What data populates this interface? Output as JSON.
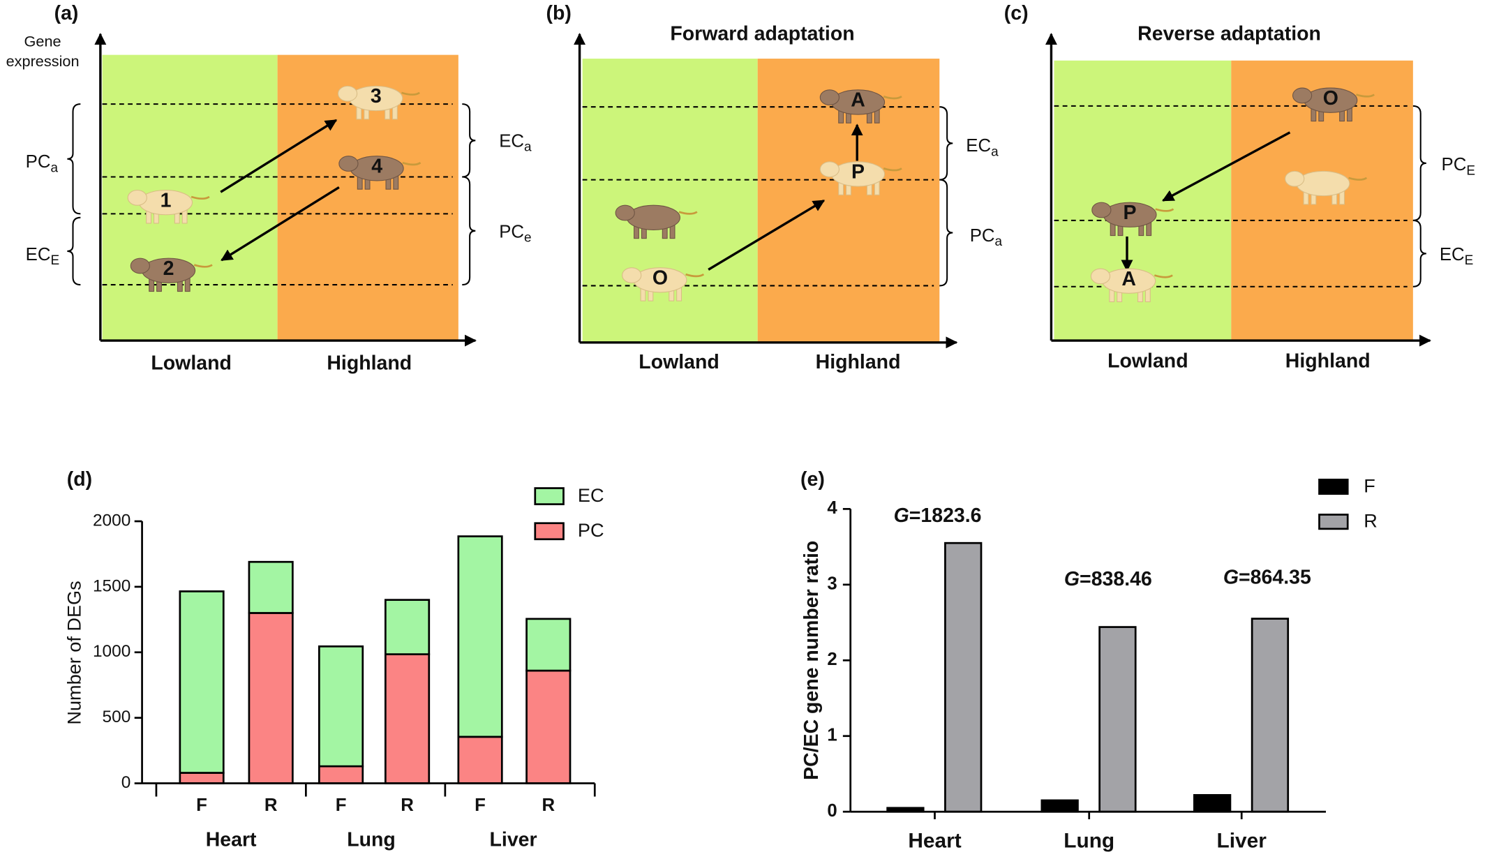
{
  "diagrams": [
    {
      "label": "(a)",
      "y_axis_label": [
        "Gene",
        "expression"
      ],
      "x_labels": [
        "Lowland",
        "Highland"
      ],
      "animals": [
        "1",
        "2",
        "3",
        "4"
      ],
      "brackets": [
        {
          "main": "PC",
          "sub": "a"
        },
        {
          "main": "EC",
          "sub": "E"
        },
        {
          "main": "EC",
          "sub": "a"
        },
        {
          "main": "PC",
          "sub": "e"
        }
      ]
    },
    {
      "label": "(b)",
      "title": "Forward adaptation",
      "x_labels": [
        "Lowland",
        "Highland"
      ],
      "animals": [
        "O",
        "P",
        "A"
      ],
      "brackets": [
        {
          "main": "EC",
          "sub": "a"
        },
        {
          "main": "PC",
          "sub": "a"
        }
      ]
    },
    {
      "label": "(c)",
      "title": "Reverse adaptation",
      "x_labels": [
        "Lowland",
        "Highland"
      ],
      "animals": [
        "O",
        "P",
        "A"
      ],
      "brackets": [
        {
          "main": "PC",
          "sub": "E"
        },
        {
          "main": "EC",
          "sub": "E"
        }
      ]
    }
  ],
  "chart_data": [
    {
      "type": "stacked_bar",
      "label": "(d)",
      "y_label": "Number of DEGs",
      "categories": [
        "F",
        "R",
        "F",
        "R",
        "F",
        "R"
      ],
      "groups": [
        "Heart",
        "Lung",
        "Liver"
      ],
      "series": [
        {
          "name": "EC",
          "color": "#a3f5a3",
          "values": [
            1385,
            390,
            915,
            415,
            1530,
            395
          ]
        },
        {
          "name": "PC",
          "color": "#fb8484",
          "values": [
            80,
            1300,
            130,
            985,
            355,
            860
          ]
        }
      ],
      "ylim": [
        0,
        2000
      ],
      "yticks": [
        0,
        500,
        1000,
        1500,
        2000
      ]
    },
    {
      "type": "grouped_bar",
      "label": "(e)",
      "y_label": "PC/EC gene number ratio",
      "categories": [
        "Heart",
        "Lung",
        "Liver"
      ],
      "series": [
        {
          "name": "F",
          "color": "#000000",
          "values": [
            0.05,
            0.15,
            0.22
          ]
        },
        {
          "name": "R",
          "color": "#a3a3a7",
          "values": [
            3.55,
            2.44,
            2.55
          ]
        }
      ],
      "annotations": [
        "G=1823.6",
        "G=838.46",
        "G=864.35"
      ],
      "ylim": [
        0,
        4
      ],
      "yticks": [
        0,
        1,
        2,
        3,
        4
      ]
    }
  ]
}
